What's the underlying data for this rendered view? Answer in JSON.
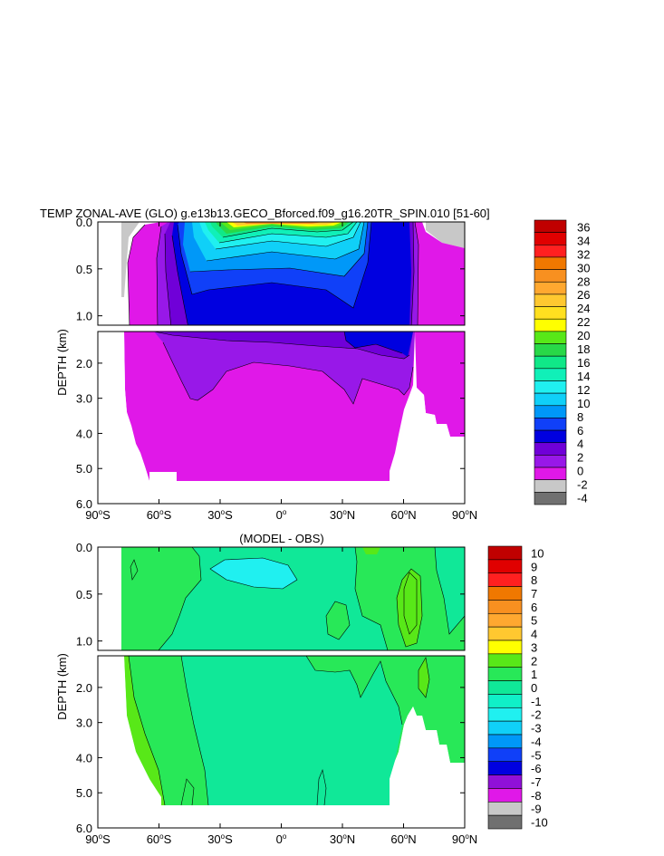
{
  "chart_data": [
    {
      "type": "contour",
      "panel": "top",
      "title": "TEMP ZONAL-AVE (GLO) g.e13b13.GECO_Bforced.f09_g16.20TR_SPIN.010 [51-60]",
      "ylabel": "DEPTH (km)",
      "x_ticks": [
        {
          "lat": -90,
          "deg": "90",
          "hem": "S"
        },
        {
          "lat": -60,
          "deg": "60",
          "hem": "S"
        },
        {
          "lat": -30,
          "deg": "30",
          "hem": "S"
        },
        {
          "lat": 0,
          "deg": "0",
          "hem": ""
        },
        {
          "lat": 30,
          "deg": "30",
          "hem": "N"
        },
        {
          "lat": 60,
          "deg": "60",
          "hem": "N"
        },
        {
          "lat": 90,
          "deg": "90",
          "hem": "N"
        }
      ],
      "y_ticks_upper": [
        "0.0",
        "0.5",
        "1.0"
      ],
      "y_ticks_lower": [
        "2.0",
        "3.0",
        "4.0",
        "5.0",
        "6.0"
      ],
      "xlim": [
        -90,
        90
      ],
      "ylim_upper": [
        0,
        1.1
      ],
      "ylim_lower": [
        1.1,
        6.0
      ],
      "colorbar": {
        "labels": [
          "36",
          "34",
          "32",
          "30",
          "28",
          "26",
          "24",
          "22",
          "20",
          "18",
          "16",
          "14",
          "12",
          "10",
          "8",
          "6",
          "4",
          "2",
          "0",
          "-2",
          "-4"
        ],
        "colors": [
          "#c00000",
          "#e00000",
          "#ff2020",
          "#f07800",
          "#f89020",
          "#ffa830",
          "#ffc830",
          "#ffe020",
          "#ffff00",
          "#58e818",
          "#28d848",
          "#10e888",
          "#10f0b8",
          "#20f0f0",
          "#10d0f8",
          "#0098f8",
          "#1040f8",
          "#0000e0",
          "#7000d8",
          "#9818e8",
          "#e018e8",
          "#c8c8c8",
          "#707070"
        ],
        "value_range": [
          -4,
          36
        ]
      }
    },
    {
      "type": "contour",
      "panel": "bottom",
      "title": "(MODEL - OBS)",
      "ylabel": "DEPTH (km)",
      "x_ticks": [
        {
          "lat": -90,
          "deg": "90",
          "hem": "S"
        },
        {
          "lat": -60,
          "deg": "60",
          "hem": "S"
        },
        {
          "lat": -30,
          "deg": "30",
          "hem": "S"
        },
        {
          "lat": 0,
          "deg": "0",
          "hem": ""
        },
        {
          "lat": 30,
          "deg": "30",
          "hem": "N"
        },
        {
          "lat": 60,
          "deg": "60",
          "hem": "N"
        },
        {
          "lat": 90,
          "deg": "90",
          "hem": "N"
        }
      ],
      "y_ticks_upper": [
        "0.0",
        "0.5",
        "1.0"
      ],
      "y_ticks_lower": [
        "2.0",
        "3.0",
        "4.0",
        "5.0",
        "6.0"
      ],
      "xlim": [
        -90,
        90
      ],
      "ylim_upper": [
        0,
        1.1
      ],
      "ylim_lower": [
        1.1,
        6.0
      ],
      "colorbar": {
        "labels": [
          "10",
          "9",
          "8",
          "7",
          "6",
          "5",
          "4",
          "3",
          "2",
          "1",
          "0",
          "-1",
          "-2",
          "-3",
          "-4",
          "-5",
          "-6",
          "-7",
          "-8",
          "-9",
          "-10"
        ],
        "colors": [
          "#c00000",
          "#e00000",
          "#ff2020",
          "#f07800",
          "#f89020",
          "#ffa830",
          "#ffc830",
          "#ffff00",
          "#58e818",
          "#28e858",
          "#10e898",
          "#10f0c8",
          "#20f0f0",
          "#10d0f8",
          "#0098f8",
          "#1040f8",
          "#0000e0",
          "#9010d8",
          "#e018e8",
          "#c8c8c8",
          "#707070"
        ],
        "value_range": [
          -10,
          10
        ]
      }
    }
  ]
}
